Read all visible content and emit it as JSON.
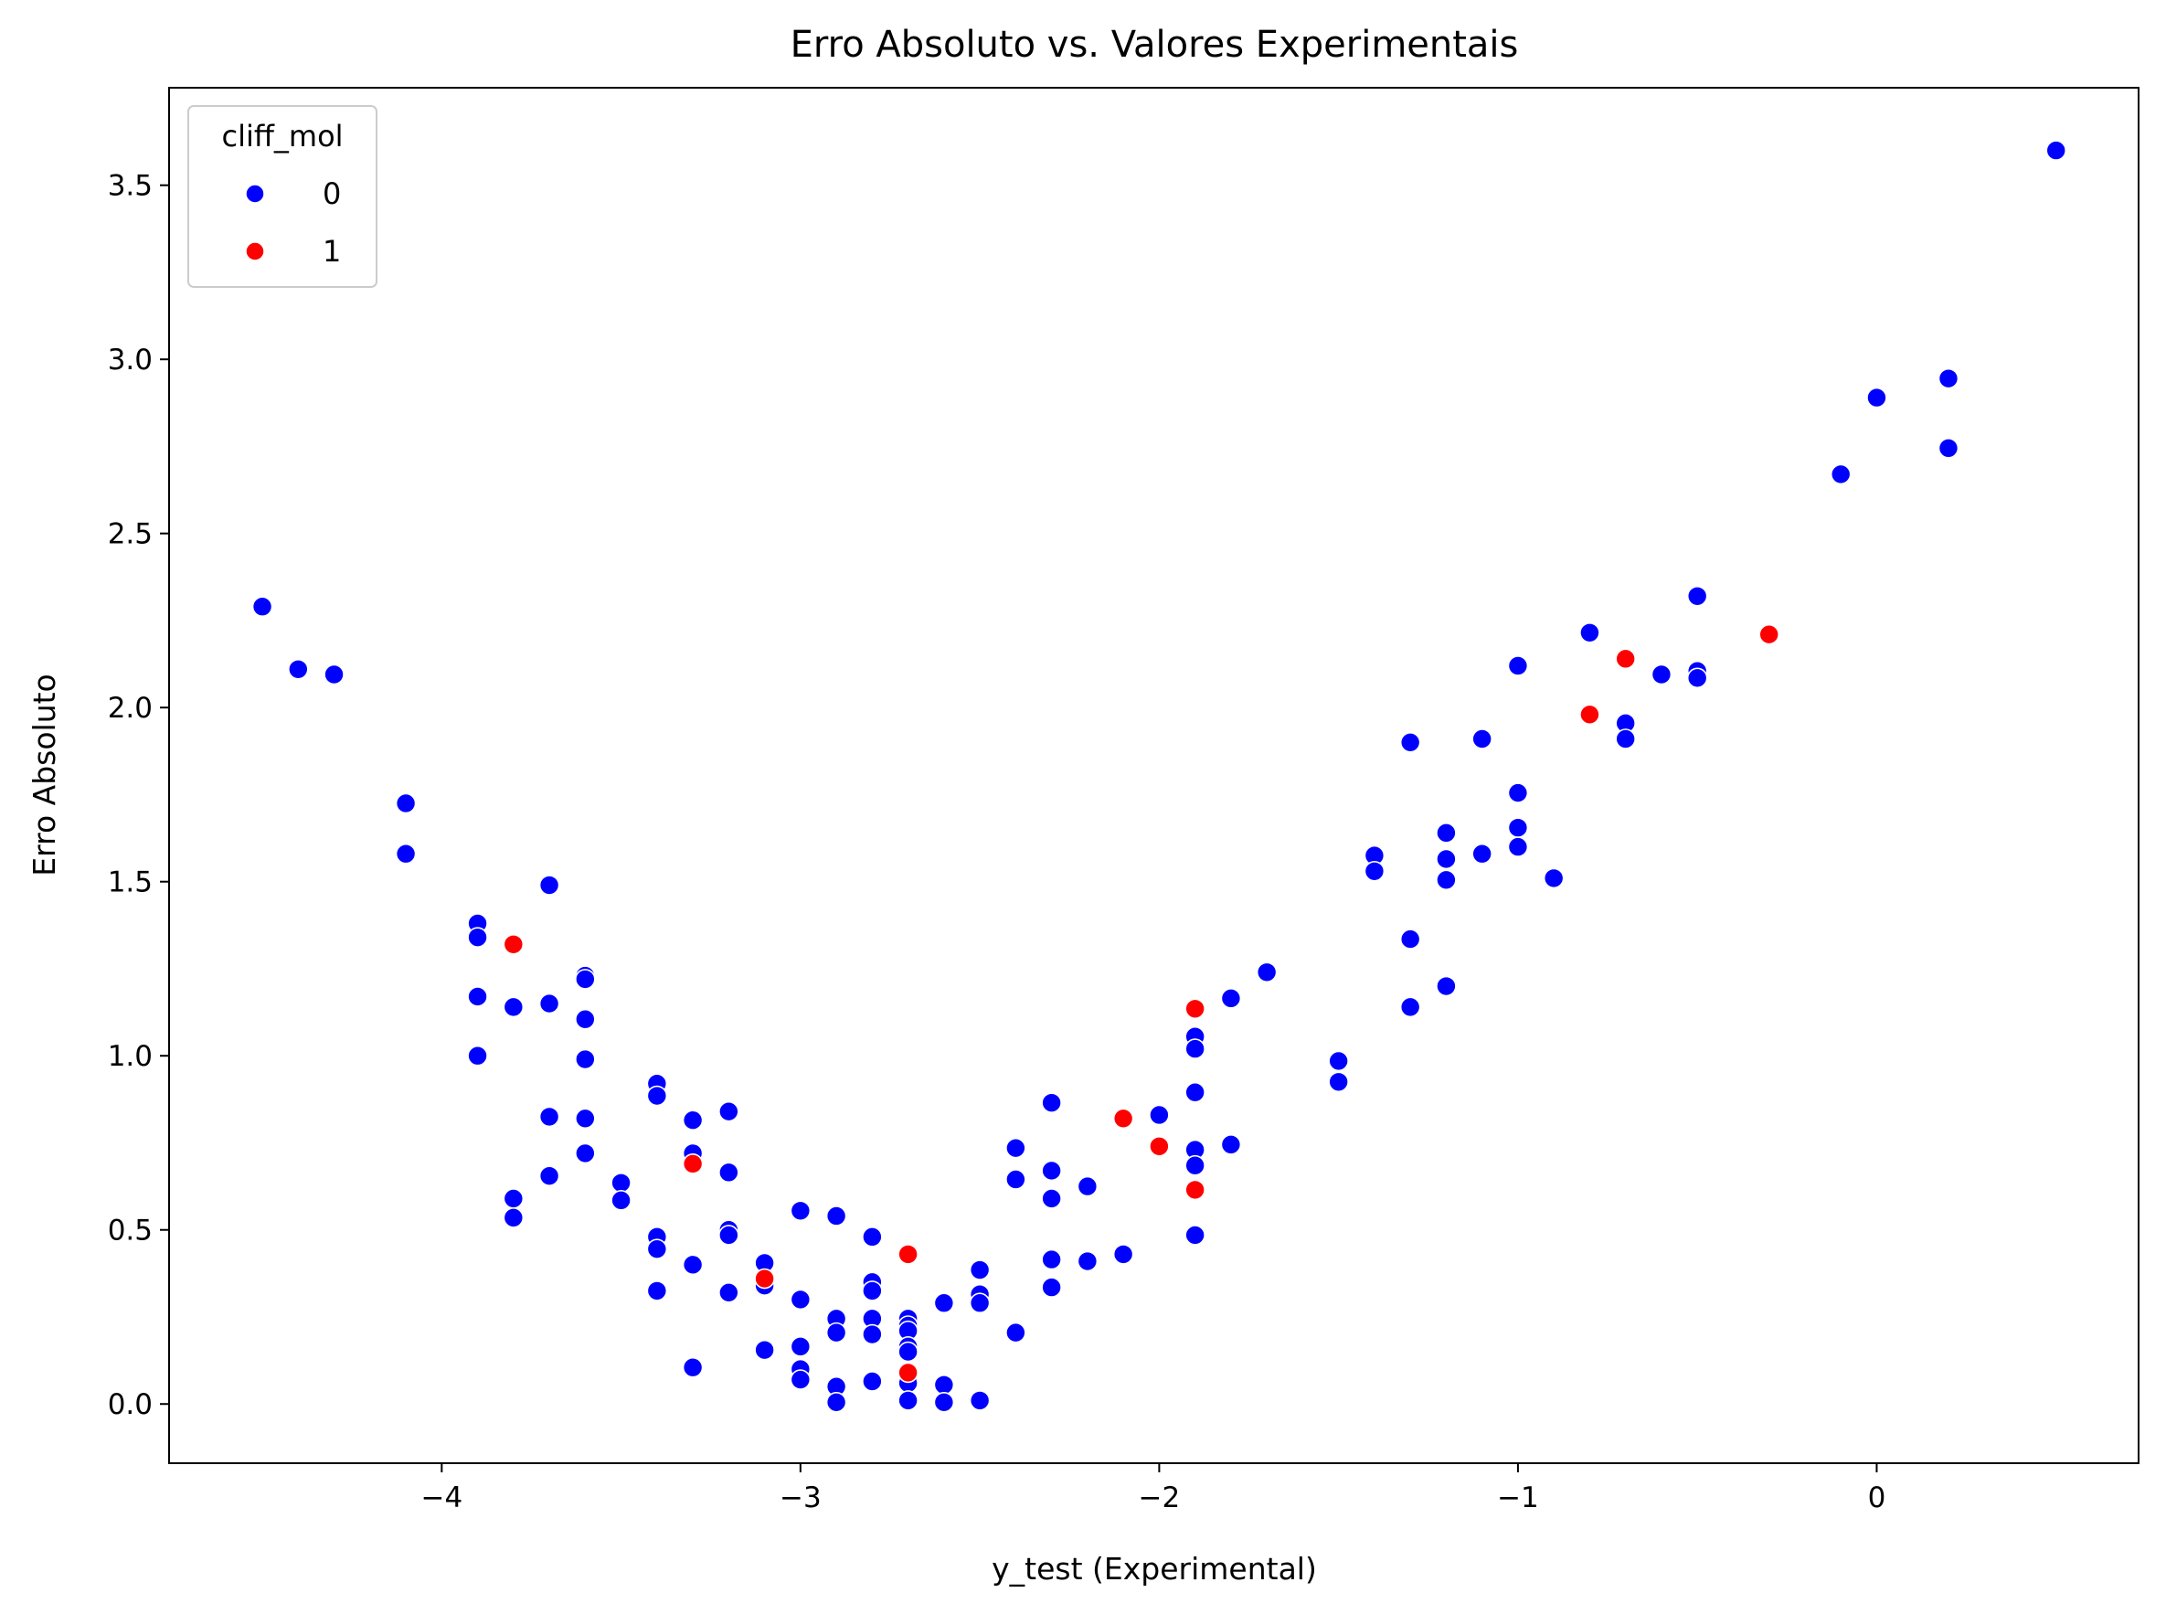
{
  "chart_data": {
    "type": "scatter",
    "title": "Erro Absoluto vs. Valores Experimentais",
    "xlabel": "y_test (Experimental)",
    "ylabel": "Erro Absoluto",
    "xlim": [
      -4.76,
      0.73
    ],
    "ylim": [
      -0.17,
      3.78
    ],
    "xticks": [
      -4,
      -3,
      -2,
      -1,
      0
    ],
    "xtick_labels": [
      "−4",
      "−3",
      "−2",
      "−1",
      "0"
    ],
    "yticks": [
      0.0,
      0.5,
      1.0,
      1.5,
      2.0,
      2.5,
      3.0,
      3.5
    ],
    "ytick_labels": [
      "0.0",
      "0.5",
      "1.0",
      "1.5",
      "2.0",
      "2.5",
      "3.0",
      "3.5"
    ],
    "grid": false,
    "legend": {
      "title": "cliff_mol",
      "position": "top-left",
      "entries": [
        {
          "label": "0",
          "color": "#0000ff"
        },
        {
          "label": "1",
          "color": "#ff0000"
        }
      ]
    },
    "series": [
      {
        "name": "0",
        "color": "#0000ff",
        "points": [
          [
            -4.5,
            2.29
          ],
          [
            -4.4,
            2.11
          ],
          [
            -4.3,
            2.095
          ],
          [
            -4.1,
            1.725
          ],
          [
            -4.1,
            1.58
          ],
          [
            -3.9,
            1.38
          ],
          [
            -3.9,
            1.34
          ],
          [
            -3.9,
            1.17
          ],
          [
            -3.9,
            1.0
          ],
          [
            -3.8,
            1.14
          ],
          [
            -3.8,
            0.59
          ],
          [
            -3.8,
            0.535
          ],
          [
            -3.7,
            1.49
          ],
          [
            -3.7,
            1.15
          ],
          [
            -3.7,
            0.825
          ],
          [
            -3.7,
            0.655
          ],
          [
            -3.6,
            1.23
          ],
          [
            -3.6,
            1.22
          ],
          [
            -3.6,
            1.105
          ],
          [
            -3.6,
            0.99
          ],
          [
            -3.6,
            0.82
          ],
          [
            -3.6,
            0.72
          ],
          [
            -3.5,
            0.635
          ],
          [
            -3.5,
            0.585
          ],
          [
            -3.4,
            0.92
          ],
          [
            -3.4,
            0.885
          ],
          [
            -3.4,
            0.48
          ],
          [
            -3.4,
            0.445
          ],
          [
            -3.4,
            0.325
          ],
          [
            -3.3,
            0.815
          ],
          [
            -3.3,
            0.72
          ],
          [
            -3.3,
            0.4
          ],
          [
            -3.3,
            0.105
          ],
          [
            -3.2,
            0.84
          ],
          [
            -3.2,
            0.665
          ],
          [
            -3.2,
            0.5
          ],
          [
            -3.2,
            0.485
          ],
          [
            -3.2,
            0.32
          ],
          [
            -3.1,
            0.405
          ],
          [
            -3.1,
            0.34
          ],
          [
            -3.1,
            0.155
          ],
          [
            -3.0,
            0.555
          ],
          [
            -3.0,
            0.3
          ],
          [
            -3.0,
            0.165
          ],
          [
            -3.0,
            0.1
          ],
          [
            -3.0,
            0.07
          ],
          [
            -2.9,
            0.54
          ],
          [
            -2.9,
            0.245
          ],
          [
            -2.9,
            0.205
          ],
          [
            -2.9,
            0.05
          ],
          [
            -2.9,
            0.005
          ],
          [
            -2.8,
            0.48
          ],
          [
            -2.8,
            0.35
          ],
          [
            -2.8,
            0.325
          ],
          [
            -2.8,
            0.245
          ],
          [
            -2.8,
            0.2
          ],
          [
            -2.8,
            0.065
          ],
          [
            -2.7,
            0.245
          ],
          [
            -2.7,
            0.225
          ],
          [
            -2.7,
            0.21
          ],
          [
            -2.7,
            0.165
          ],
          [
            -2.7,
            0.15
          ],
          [
            -2.7,
            0.06
          ],
          [
            -2.7,
            0.01
          ],
          [
            -2.6,
            0.29
          ],
          [
            -2.6,
            0.055
          ],
          [
            -2.6,
            0.005
          ],
          [
            -2.5,
            0.385
          ],
          [
            -2.5,
            0.315
          ],
          [
            -2.5,
            0.29
          ],
          [
            -2.5,
            0.01
          ],
          [
            -2.4,
            0.735
          ],
          [
            -2.4,
            0.645
          ],
          [
            -2.4,
            0.205
          ],
          [
            -2.3,
            0.865
          ],
          [
            -2.3,
            0.67
          ],
          [
            -2.3,
            0.59
          ],
          [
            -2.3,
            0.415
          ],
          [
            -2.3,
            0.335
          ],
          [
            -2.2,
            0.625
          ],
          [
            -2.2,
            0.41
          ],
          [
            -2.1,
            0.43
          ],
          [
            -2.0,
            0.83
          ],
          [
            -1.9,
            1.055
          ],
          [
            -1.9,
            1.02
          ],
          [
            -1.9,
            0.895
          ],
          [
            -1.9,
            0.73
          ],
          [
            -1.9,
            0.685
          ],
          [
            -1.9,
            0.485
          ],
          [
            -1.8,
            1.165
          ],
          [
            -1.8,
            0.745
          ],
          [
            -1.7,
            1.24
          ],
          [
            -1.5,
            0.985
          ],
          [
            -1.5,
            0.925
          ],
          [
            -1.4,
            1.575
          ],
          [
            -1.4,
            1.53
          ],
          [
            -1.3,
            1.9
          ],
          [
            -1.3,
            1.335
          ],
          [
            -1.3,
            1.14
          ],
          [
            -1.2,
            1.64
          ],
          [
            -1.2,
            1.565
          ],
          [
            -1.2,
            1.505
          ],
          [
            -1.2,
            1.2
          ],
          [
            -1.1,
            1.91
          ],
          [
            -1.1,
            1.58
          ],
          [
            -1.0,
            2.12
          ],
          [
            -1.0,
            1.755
          ],
          [
            -1.0,
            1.655
          ],
          [
            -1.0,
            1.6
          ],
          [
            -0.9,
            1.51
          ],
          [
            -0.8,
            2.215
          ],
          [
            -0.7,
            1.955
          ],
          [
            -0.7,
            1.91
          ],
          [
            -0.6,
            2.095
          ],
          [
            -0.5,
            2.32
          ],
          [
            -0.5,
            2.105
          ],
          [
            -0.5,
            2.085
          ],
          [
            -0.1,
            2.67
          ],
          [
            0.0,
            2.89
          ],
          [
            0.2,
            2.945
          ],
          [
            0.2,
            2.745
          ],
          [
            0.5,
            3.6
          ]
        ]
      },
      {
        "name": "1",
        "color": "#ff0000",
        "points": [
          [
            -3.8,
            1.32
          ],
          [
            -3.3,
            0.69
          ],
          [
            -3.1,
            0.36
          ],
          [
            -2.7,
            0.43
          ],
          [
            -2.7,
            0.09
          ],
          [
            -2.1,
            0.82
          ],
          [
            -2.0,
            0.74
          ],
          [
            -1.9,
            1.135
          ],
          [
            -1.9,
            0.615
          ],
          [
            -0.8,
            1.98
          ],
          [
            -0.7,
            2.14
          ],
          [
            -0.3,
            2.21
          ]
        ]
      }
    ]
  }
}
